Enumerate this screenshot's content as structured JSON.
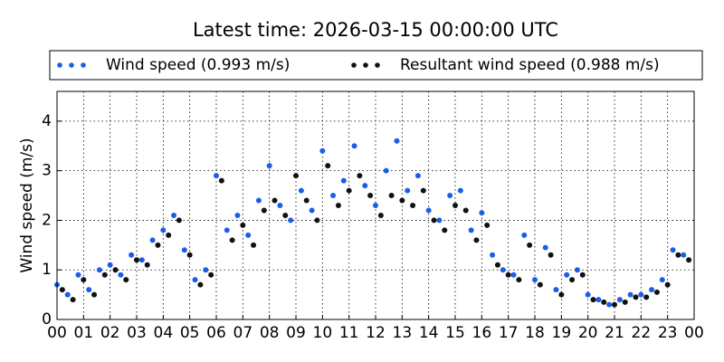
{
  "chart_data": {
    "type": "scatter",
    "title": "Latest time: 2026-03-15 00:00:00 UTC",
    "ylabel": "Wind speed (m/s)",
    "xlim": [
      0,
      24
    ],
    "ylim": [
      0,
      4.6
    ],
    "xticks": [
      {
        "value": 0,
        "label": "00"
      },
      {
        "value": 1,
        "label": "01"
      },
      {
        "value": 2,
        "label": "02"
      },
      {
        "value": 3,
        "label": "03"
      },
      {
        "value": 4,
        "label": "04"
      },
      {
        "value": 5,
        "label": "05"
      },
      {
        "value": 6,
        "label": "06"
      },
      {
        "value": 7,
        "label": "07"
      },
      {
        "value": 8,
        "label": "08"
      },
      {
        "value": 9,
        "label": "09"
      },
      {
        "value": 10,
        "label": "10"
      },
      {
        "value": 11,
        "label": "11"
      },
      {
        "value": 12,
        "label": "12"
      },
      {
        "value": 13,
        "label": "13"
      },
      {
        "value": 14,
        "label": "14"
      },
      {
        "value": 15,
        "label": "15"
      },
      {
        "value": 16,
        "label": "16"
      },
      {
        "value": 17,
        "label": "17"
      },
      {
        "value": 18,
        "label": "18"
      },
      {
        "value": 19,
        "label": "19"
      },
      {
        "value": 20,
        "label": "20"
      },
      {
        "value": 21,
        "label": "21"
      },
      {
        "value": 22,
        "label": "22"
      },
      {
        "value": 23,
        "label": "23"
      },
      {
        "value": 24,
        "label": "00"
      }
    ],
    "yticks": [
      0,
      1,
      2,
      3,
      4
    ],
    "grid": true,
    "series": [
      {
        "name": "Wind speed (0.993 m/s)",
        "color": "#1a5ee8",
        "x": [
          0.0,
          0.4,
          0.8,
          1.2,
          1.6,
          2.0,
          2.4,
          2.8,
          3.2,
          3.6,
          4.0,
          4.4,
          4.8,
          5.2,
          5.6,
          6.0,
          6.4,
          6.8,
          7.2,
          7.6,
          8.0,
          8.4,
          8.8,
          9.2,
          9.6,
          10.0,
          10.4,
          10.8,
          11.2,
          11.6,
          12.0,
          12.4,
          12.8,
          13.2,
          13.6,
          14.0,
          14.4,
          14.8,
          15.2,
          15.6,
          16.0,
          16.4,
          16.8,
          17.2,
          17.6,
          18.0,
          18.4,
          18.8,
          19.2,
          19.6,
          20.0,
          20.4,
          20.8,
          21.2,
          21.6,
          22.0,
          22.4,
          22.8,
          23.2,
          23.6
        ],
        "values": [
          0.7,
          0.5,
          0.9,
          0.6,
          1.0,
          1.1,
          0.9,
          1.3,
          1.2,
          1.6,
          1.8,
          2.1,
          1.4,
          0.8,
          1.0,
          2.9,
          1.8,
          2.1,
          1.7,
          2.4,
          3.1,
          2.3,
          2.0,
          2.6,
          2.2,
          3.4,
          2.5,
          2.8,
          3.5,
          2.7,
          2.3,
          3.0,
          3.6,
          2.6,
          2.9,
          2.2,
          2.0,
          2.5,
          2.6,
          1.8,
          2.15,
          1.3,
          1.0,
          0.9,
          1.7,
          0.8,
          1.45,
          0.6,
          0.9,
          1.0,
          0.5,
          0.4,
          0.3,
          0.4,
          0.5,
          0.5,
          0.6,
          0.8,
          1.4,
          1.3
        ]
      },
      {
        "name": "Resultant wind speed (0.988 m/s)",
        "color": "#111111",
        "x": [
          0.2,
          0.6,
          1.0,
          1.4,
          1.8,
          2.2,
          2.6,
          3.0,
          3.4,
          3.8,
          4.2,
          4.6,
          5.0,
          5.4,
          5.8,
          6.2,
          6.6,
          7.0,
          7.4,
          7.8,
          8.2,
          8.6,
          9.0,
          9.4,
          9.8,
          10.2,
          10.6,
          11.0,
          11.4,
          11.8,
          12.2,
          12.6,
          13.0,
          13.4,
          13.8,
          14.2,
          14.6,
          15.0,
          15.4,
          15.8,
          16.2,
          16.6,
          17.0,
          17.4,
          17.8,
          18.2,
          18.6,
          19.0,
          19.4,
          19.8,
          20.2,
          20.6,
          21.0,
          21.4,
          21.8,
          22.2,
          22.6,
          23.0,
          23.4,
          23.8
        ],
        "values": [
          0.6,
          0.4,
          0.8,
          0.5,
          0.9,
          1.0,
          0.8,
          1.2,
          1.1,
          1.5,
          1.7,
          2.0,
          1.3,
          0.7,
          0.9,
          2.8,
          1.6,
          1.9,
          1.5,
          2.2,
          2.4,
          2.1,
          2.9,
          2.4,
          2.0,
          3.1,
          2.3,
          2.6,
          2.9,
          2.5,
          2.1,
          2.5,
          2.4,
          2.3,
          2.6,
          2.0,
          1.8,
          2.3,
          2.2,
          1.6,
          1.9,
          1.1,
          0.9,
          0.8,
          1.5,
          0.7,
          1.3,
          0.5,
          0.8,
          0.9,
          0.4,
          0.35,
          0.3,
          0.35,
          0.45,
          0.45,
          0.55,
          0.7,
          1.3,
          1.2
        ]
      }
    ]
  }
}
